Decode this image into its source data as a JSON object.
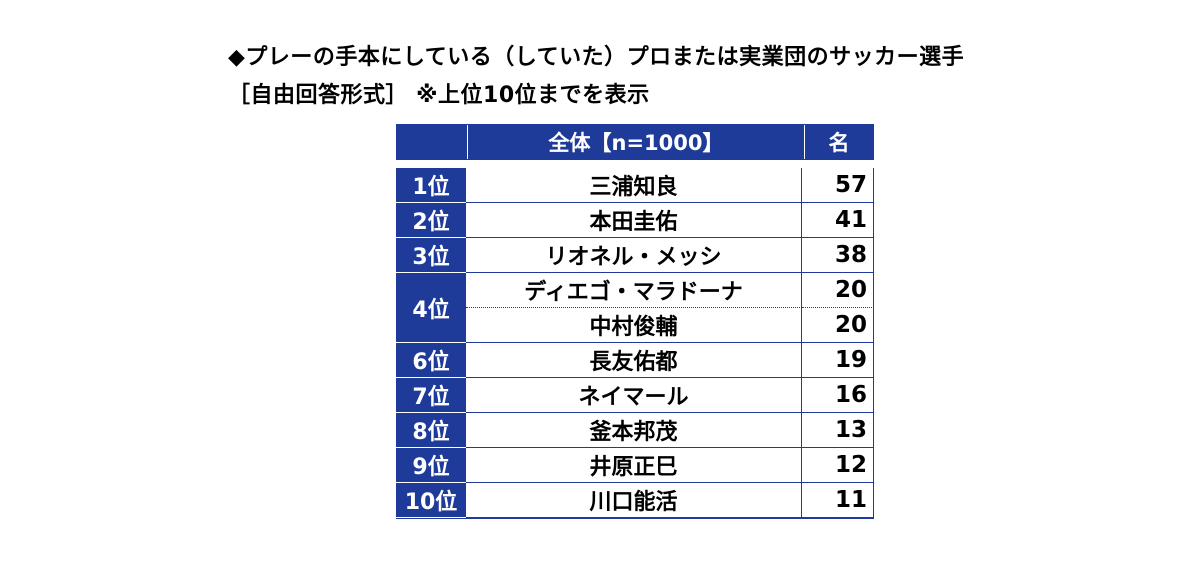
{
  "title_line1": "◆プレーの手本にしている（していた）プロまたは実業団のサッカー選手",
  "title_line2": "［自由回答形式］ ※上位10位までを表示",
  "colors": {
    "header_bg": "#1f3b9a",
    "header_text": "#ffffff",
    "border": "#1f3b9a"
  },
  "chart_data": {
    "type": "table",
    "columns": [
      "",
      "全体【n=1000】",
      "名"
    ],
    "rows": [
      {
        "rank": "1位",
        "name": "三浦知良",
        "count": 57
      },
      {
        "rank": "2位",
        "name": "本田圭佑",
        "count": 41
      },
      {
        "rank": "3位",
        "name": "リオネル・メッシ",
        "count": 38
      },
      {
        "rank": "4位",
        "name": "ディエゴ・マラドーナ",
        "count": 20
      },
      {
        "rank": "4位",
        "name": "中村俊輔",
        "count": 20
      },
      {
        "rank": "6位",
        "name": "長友佑都",
        "count": 19
      },
      {
        "rank": "7位",
        "name": "ネイマール",
        "count": 16
      },
      {
        "rank": "8位",
        "name": "釜本邦茂",
        "count": 13
      },
      {
        "rank": "9位",
        "name": "井原正巳",
        "count": 12
      },
      {
        "rank": "10位",
        "name": "川口能活",
        "count": 11
      }
    ]
  }
}
